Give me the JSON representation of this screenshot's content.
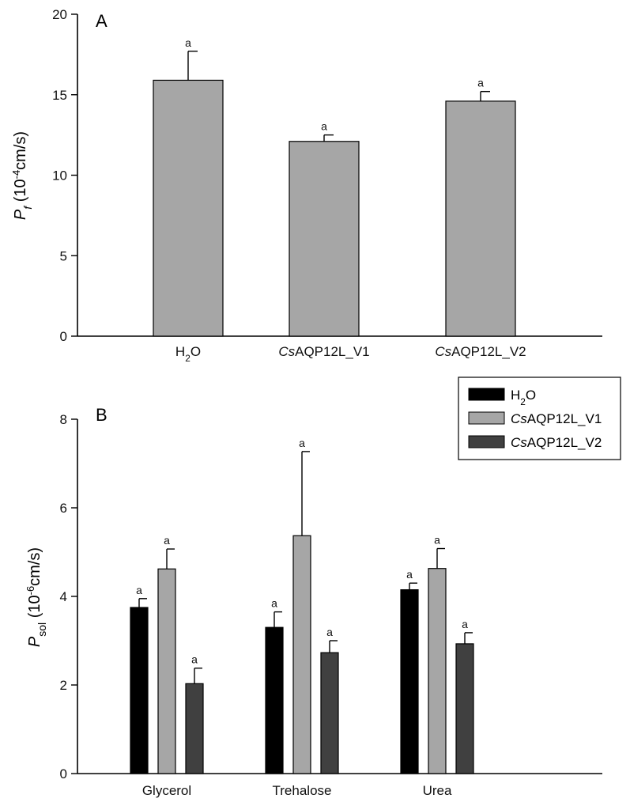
{
  "chart_data": [
    {
      "type": "bar",
      "panel_label": "A",
      "ylabel": {
        "italic": "P",
        "sub": "f",
        "rest": " (10",
        "sup": "-4",
        "tail": "cm/s)"
      },
      "ylim": [
        0,
        20
      ],
      "yticks": [
        0,
        5,
        10,
        15,
        20
      ],
      "categories": [
        {
          "italic": "",
          "main": "H",
          "sub": "2",
          "after": "O"
        },
        {
          "italic": "Cs",
          "main": "AQP12L_V1",
          "sub": "",
          "after": ""
        },
        {
          "italic": "Cs",
          "main": "AQP12L_V2",
          "sub": "",
          "after": ""
        }
      ],
      "values": [
        15.9,
        12.1,
        14.6
      ],
      "errors": [
        1.8,
        0.4,
        0.6
      ],
      "significance": [
        "a",
        "a",
        "a"
      ],
      "bar_color": "#a6a6a6"
    },
    {
      "type": "bar",
      "panel_label": "B",
      "ylabel": {
        "italic": "P",
        "sub": "sol",
        "rest": " (10",
        "sup": "-6",
        "tail": "cm/s)"
      },
      "ylim": [
        0,
        8
      ],
      "yticks": [
        0,
        2,
        4,
        6,
        8
      ],
      "categories": [
        "Glycerol",
        "Trehalose",
        "Urea"
      ],
      "series": [
        {
          "legend": {
            "italic": "",
            "main": "H",
            "sub": "2",
            "after": "O"
          },
          "color": "#000000",
          "values": [
            3.75,
            3.3,
            4.15
          ],
          "errors": [
            0.2,
            0.35,
            0.15
          ],
          "significance": [
            "a",
            "a",
            "a"
          ]
        },
        {
          "legend": {
            "italic": "Cs",
            "main": "AQP12L_V1",
            "sub": "",
            "after": ""
          },
          "color": "#a6a6a6",
          "values": [
            4.62,
            5.37,
            4.63
          ],
          "errors": [
            0.45,
            1.9,
            0.45
          ],
          "significance": [
            "a",
            "a",
            "a"
          ]
        },
        {
          "legend": {
            "italic": "Cs",
            "main": "AQP12L_V2",
            "sub": "",
            "after": ""
          },
          "color": "#404040",
          "values": [
            2.03,
            2.73,
            2.93
          ],
          "errors": [
            0.35,
            0.27,
            0.25
          ],
          "significance": [
            "a",
            "a",
            "a"
          ]
        }
      ],
      "legend_position": "top-right"
    }
  ]
}
